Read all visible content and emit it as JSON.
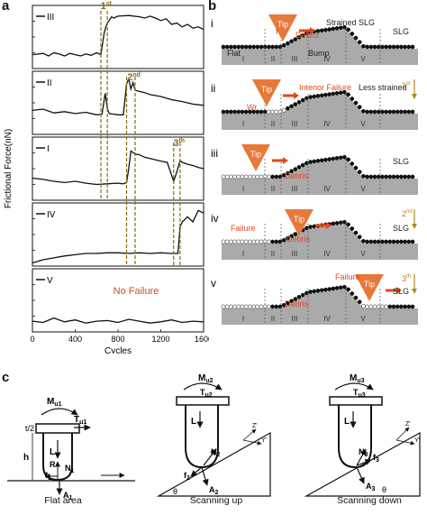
{
  "panel_labels": {
    "a": "a",
    "b": "b",
    "c": "c"
  },
  "chart_data": {
    "type": "line",
    "xlabel": "Cycles",
    "ylabel": "Frictional Force(nN)",
    "xlim": [
      0,
      1600
    ],
    "x_ticks": [
      "0",
      "400",
      "800",
      "1200",
      "1600"
    ],
    "grid": false,
    "series": [
      {
        "name": "III",
        "x": [
          0,
          100,
          150,
          200,
          250,
          300,
          350,
          400,
          450,
          500,
          550,
          600,
          640,
          660,
          670,
          690,
          700,
          740,
          760,
          800,
          900,
          1000,
          1050,
          1100,
          1150,
          1200,
          1250,
          1300,
          1350,
          1400,
          1450,
          1500,
          1550,
          1600
        ],
        "y": [
          0.22,
          0.24,
          0.2,
          0.25,
          0.23,
          0.2,
          0.24,
          0.22,
          0.2,
          0.23,
          0.21,
          0.25,
          0.22,
          0.45,
          0.56,
          0.68,
          0.72,
          0.82,
          0.8,
          0.83,
          0.84,
          0.82,
          0.8,
          0.83,
          0.8,
          0.76,
          0.79,
          0.7,
          0.72,
          0.66,
          0.7,
          0.64,
          0.66,
          0.62
        ]
      },
      {
        "name": "II",
        "x": [
          0,
          100,
          200,
          300,
          400,
          500,
          600,
          650,
          680,
          700,
          710,
          720,
          760,
          800,
          850,
          880,
          900,
          920,
          940,
          960,
          1000,
          1050,
          1100,
          1200,
          1300,
          1400,
          1500,
          1600
        ],
        "y": [
          0.38,
          0.4,
          0.34,
          0.36,
          0.33,
          0.35,
          0.31,
          0.32,
          0.65,
          0.42,
          0.36,
          0.33,
          0.32,
          0.31,
          0.31,
          0.8,
          0.88,
          0.72,
          0.82,
          0.7,
          0.68,
          0.66,
          0.63,
          0.6,
          0.55,
          0.52,
          0.48,
          0.46
        ]
      },
      {
        "name": "I",
        "x": [
          0,
          100,
          200,
          300,
          400,
          500,
          600,
          700,
          800,
          850,
          880,
          900,
          920,
          960,
          1000,
          1050,
          1100,
          1200,
          1260,
          1300,
          1320,
          1350,
          1380,
          1400,
          1450,
          1500,
          1550,
          1600
        ],
        "y": [
          0.35,
          0.33,
          0.3,
          0.28,
          0.3,
          0.27,
          0.25,
          0.26,
          0.27,
          0.26,
          0.28,
          0.5,
          0.78,
          0.73,
          0.72,
          0.68,
          0.66,
          0.62,
          0.6,
          0.4,
          0.3,
          0.45,
          0.63,
          0.6,
          0.57,
          0.55,
          0.52,
          0.5
        ]
      },
      {
        "name": "IV",
        "x": [
          0,
          100,
          200,
          300,
          400,
          500,
          600,
          700,
          800,
          900,
          1000,
          1100,
          1200,
          1300,
          1350,
          1360,
          1380,
          1400,
          1450,
          1500,
          1550,
          1600
        ],
        "y": [
          0.05,
          0.1,
          0.13,
          0.16,
          0.18,
          0.2,
          0.2,
          0.21,
          0.21,
          0.2,
          0.21,
          0.2,
          0.21,
          0.2,
          0.2,
          0.2,
          0.62,
          0.7,
          0.78,
          0.7,
          0.88,
          0.84
        ]
      },
      {
        "name": "V",
        "x": [
          0,
          100,
          200,
          300,
          400,
          500,
          600,
          700,
          800,
          900,
          1000,
          1100,
          1200,
          1300,
          1400,
          1500,
          1600
        ],
        "y": [
          0.17,
          0.15,
          0.22,
          0.16,
          0.19,
          0.14,
          0.17,
          0.18,
          0.15,
          0.2,
          0.17,
          0.14,
          0.16,
          0.19,
          0.15,
          0.17,
          0.16
        ]
      }
    ],
    "failure_markers": [
      {
        "label": "1",
        "sup": "st",
        "x": [
          640,
          700
        ]
      },
      {
        "label": "2",
        "sup": "nd",
        "x": [
          880,
          960
        ]
      },
      {
        "label": "3",
        "sup": "th",
        "x": [
          1320,
          1380
        ]
      }
    ],
    "annotations": [
      "No Failure"
    ],
    "colors": {
      "line": "#111111",
      "marker": "#8a6a10",
      "annotation": "#c0502a"
    }
  },
  "panel_b": {
    "rows": [
      {
        "numeral": "i",
        "labels": [
          "Tip",
          "Strained SLG",
          "Defect",
          "f",
          "SLG",
          "Flat",
          "Bump"
        ],
        "zones": [
          "I",
          "II",
          "III",
          "IV",
          "V"
        ]
      },
      {
        "numeral": "ii",
        "labels": [
          "Tip",
          "Interior Failure",
          "Less strained",
          "Wr",
          "1",
          "st"
        ],
        "zones": [
          "I",
          "II",
          "III",
          "IV",
          "V"
        ]
      },
      {
        "numeral": "iii",
        "labels": [
          "Tip",
          "Debris",
          "SLG"
        ],
        "zones": [
          "I",
          "II",
          "III",
          "IV",
          "V"
        ]
      },
      {
        "numeral": "iv",
        "labels": [
          "Tip",
          "Failure",
          "Debris",
          "SLG",
          "2",
          "nd"
        ],
        "zones": [
          "I",
          "II",
          "III",
          "IV",
          "V"
        ]
      },
      {
        "numeral": "v",
        "labels": [
          "Tip",
          "Failure",
          "Debris",
          "SLG",
          "3",
          "th"
        ],
        "zones": [
          "I",
          "II",
          "III",
          "IV",
          "V"
        ]
      }
    ],
    "colors": {
      "tip": "#e8783a",
      "substrate": "#aaaaaa",
      "arrow": "#e04a1a",
      "arrow_gold": "#b08a1a",
      "dashed": "#555555"
    }
  },
  "panel_c": {
    "captions": [
      "Flat area",
      "Scanning up",
      "Scanning down"
    ],
    "flat": {
      "M": "M",
      "M_sub": "u1",
      "T": "T",
      "T_sub": "u1",
      "L": "L",
      "R": "R",
      "N": "N",
      "N_sub": "1",
      "f": "f",
      "f_sub": "1",
      "A": "A",
      "A_sub": "1",
      "h": "h",
      "t2": "t/2"
    },
    "up": {
      "M": "M",
      "M_sub": "u2",
      "T": "T",
      "T_sub": "u2",
      "L": "L",
      "N": "N",
      "N_sub": "2",
      "f": "f",
      "f_sub": "2",
      "A": "A",
      "A_sub": "2",
      "theta": "θ",
      "z": "Z'",
      "y": "Y'"
    },
    "down": {
      "M": "M",
      "M_sub": "u3",
      "T": "T",
      "T_sub": "u3",
      "L": "L",
      "N": "N",
      "N_sub": "3",
      "f": "f",
      "f_sub": "3",
      "A": "A",
      "A_sub": "3",
      "theta": "θ",
      "z": "Z'",
      "y": "Y'"
    }
  }
}
